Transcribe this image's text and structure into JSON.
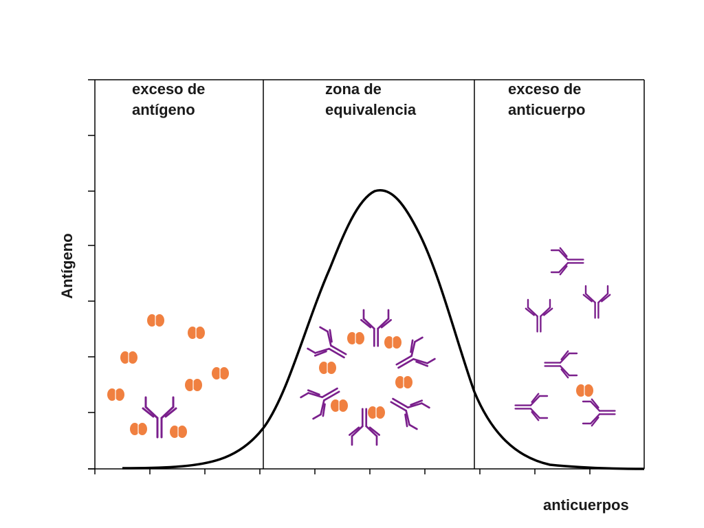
{
  "zones": [
    {
      "line1": "exceso de",
      "line2": "antígeno"
    },
    {
      "line1": "zona de",
      "line2": "equivalencia"
    },
    {
      "line1": "exceso de",
      "line2": "anticuerpo"
    }
  ],
  "axes": {
    "ylabel": "Antígeno",
    "xlabel": "anticuerpos"
  },
  "colors": {
    "antibody": "#7a1f8c",
    "antigen": "#f08040",
    "curve": "#000000",
    "axis": "#000000"
  },
  "icons": {
    "antigen": "antigen-particle-icon",
    "antibody": "y-shaped-antibody-icon"
  }
}
